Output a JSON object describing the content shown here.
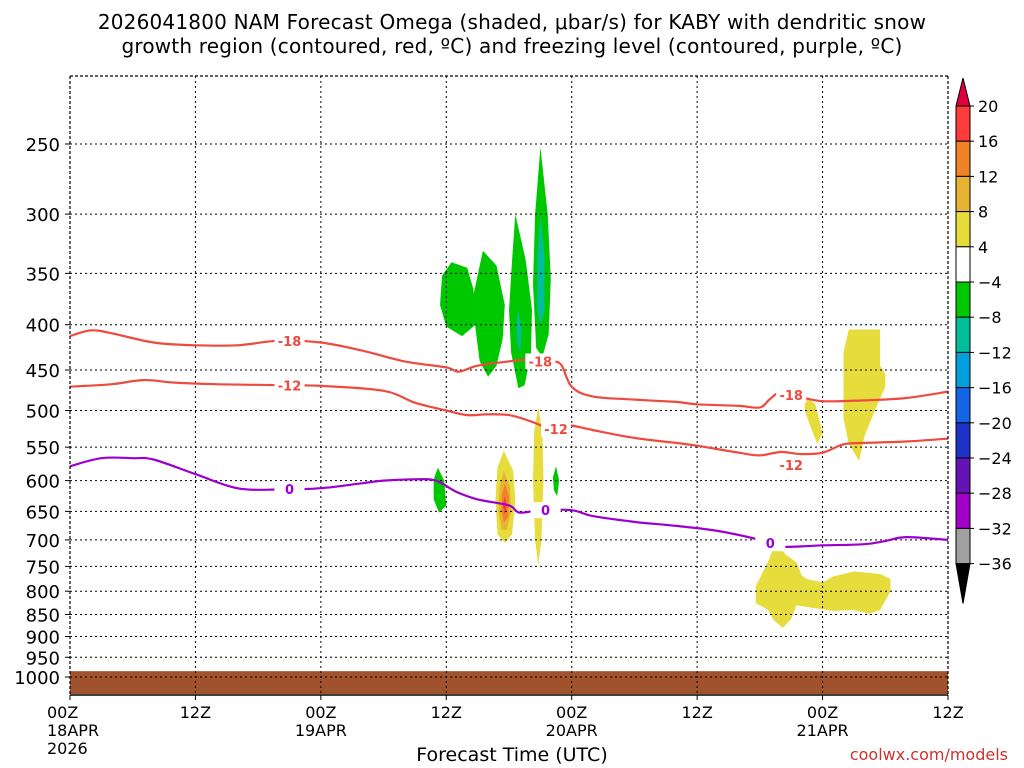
{
  "chart_data": {
    "type": "time-height-contour",
    "title_line1": "2026041800 NAM Forecast Omega (shaded, μbar/s) for KABY with dendritic snow",
    "title_line2": "growth region (contoured, red, ºC) and freezing level (contoured, purple, ºC)",
    "xlabel": "Forecast Time (UTC)",
    "credit": "coolwx.com/models",
    "x_hours_range": [
      0,
      84
    ],
    "x_ticks": [
      {
        "hour": 0,
        "label": "00Z",
        "date": "18APR",
        "year": "2026"
      },
      {
        "hour": 12,
        "label": "12Z",
        "date": "",
        "year": ""
      },
      {
        "hour": 24,
        "label": "00Z",
        "date": "19APR",
        "year": ""
      },
      {
        "hour": 36,
        "label": "12Z",
        "date": "",
        "year": ""
      },
      {
        "hour": 48,
        "label": "00Z",
        "date": "20APR",
        "year": ""
      },
      {
        "hour": 60,
        "label": "12Z",
        "date": "",
        "year": ""
      },
      {
        "hour": 72,
        "label": "00Z",
        "date": "21APR",
        "year": ""
      },
      {
        "hour": 84,
        "label": "12Z",
        "date": "",
        "year": ""
      }
    ],
    "y_ticks_hpa": [
      250,
      300,
      350,
      400,
      450,
      500,
      550,
      600,
      650,
      700,
      750,
      800,
      850,
      900,
      950,
      1000
    ],
    "y_scale": "log-pressure",
    "grid": true,
    "colorbar": {
      "labels": [
        "20",
        "16",
        "12",
        "8",
        "4",
        "−4",
        "−8",
        "−12",
        "−16",
        "−20",
        "−24",
        "−28",
        "−32",
        "−36"
      ],
      "colors": [
        "#e0003c",
        "#ff3c3c",
        "#f08228",
        "#e6b432",
        "#e6dc3c",
        "#ffffff",
        "#00c800",
        "#00be9b",
        "#00a0dc",
        "#1464e6",
        "#1e32c8",
        "#6414b4",
        "#a000c8",
        "#a0a0a0",
        "#000000"
      ]
    },
    "contours": [
      {
        "label": "-18",
        "color": "#ee4a3f",
        "points": [
          [
            0,
            412
          ],
          [
            2,
            406
          ],
          [
            4,
            409
          ],
          [
            8,
            419
          ],
          [
            12,
            422
          ],
          [
            16,
            422
          ],
          [
            20,
            417
          ],
          [
            24,
            419
          ],
          [
            28,
            428
          ],
          [
            32,
            440
          ],
          [
            36,
            447
          ],
          [
            37.2,
            452
          ],
          [
            39,
            445
          ],
          [
            42,
            440
          ],
          [
            44,
            438
          ],
          [
            46,
            440
          ],
          [
            47,
            444
          ],
          [
            48,
            470
          ],
          [
            50,
            482
          ],
          [
            54,
            486
          ],
          [
            58,
            489
          ],
          [
            60,
            492
          ],
          [
            64,
            494
          ],
          [
            66,
            496
          ],
          [
            67,
            485
          ],
          [
            68,
            477
          ],
          [
            70,
            483
          ],
          [
            72,
            488
          ],
          [
            76,
            487
          ],
          [
            80,
            484
          ],
          [
            84,
            476
          ]
        ]
      },
      {
        "label": "-12",
        "color": "#ee4a3f",
        "points": [
          [
            0,
            470
          ],
          [
            4,
            467
          ],
          [
            7,
            462
          ],
          [
            10,
            465
          ],
          [
            14,
            467
          ],
          [
            20,
            468
          ],
          [
            24,
            469
          ],
          [
            30,
            475
          ],
          [
            33,
            490
          ],
          [
            36,
            500
          ],
          [
            38,
            506
          ],
          [
            40,
            505
          ],
          [
            42,
            506
          ],
          [
            44,
            514
          ],
          [
            45.5,
            523
          ],
          [
            46,
            528
          ],
          [
            47,
            521
          ],
          [
            48,
            520
          ],
          [
            50,
            526
          ],
          [
            54,
            537
          ],
          [
            58,
            544
          ],
          [
            60,
            548
          ],
          [
            64,
            558
          ],
          [
            66,
            562
          ],
          [
            68,
            557
          ],
          [
            70,
            560
          ],
          [
            72,
            558
          ],
          [
            74,
            546
          ],
          [
            76,
            544
          ],
          [
            80,
            542
          ],
          [
            84,
            538
          ]
        ]
      },
      {
        "label": "0",
        "color": "#9b00d2",
        "points": [
          [
            0,
            578
          ],
          [
            3,
            566
          ],
          [
            6,
            566
          ],
          [
            8,
            568
          ],
          [
            12,
            590
          ],
          [
            16,
            612
          ],
          [
            20,
            614
          ],
          [
            24,
            612
          ],
          [
            28,
            604
          ],
          [
            30,
            600
          ],
          [
            33,
            598
          ],
          [
            35,
            600
          ],
          [
            37,
            618
          ],
          [
            39,
            630
          ],
          [
            42,
            640
          ],
          [
            43,
            652
          ],
          [
            45,
            648
          ],
          [
            48,
            648
          ],
          [
            50,
            658
          ],
          [
            54,
            668
          ],
          [
            58,
            675
          ],
          [
            62,
            684
          ],
          [
            66,
            700
          ],
          [
            68,
            712
          ],
          [
            70,
            712
          ],
          [
            72,
            710
          ],
          [
            76,
            708
          ],
          [
            78,
            702
          ],
          [
            80,
            695
          ],
          [
            84,
            700
          ]
        ]
      }
    ],
    "omega_regions": [
      {
        "value": "-8",
        "color": "#00c800",
        "kind": "poly",
        "points": [
          [
            36.5,
            340
          ],
          [
            38,
            345
          ],
          [
            38.6,
            365
          ],
          [
            38.8,
            400
          ],
          [
            37.5,
            412
          ],
          [
            36,
            402
          ],
          [
            35.4,
            380
          ],
          [
            35.6,
            352
          ]
        ]
      },
      {
        "value": "-8",
        "color": "#00c800",
        "kind": "poly",
        "points": [
          [
            39.5,
            330
          ],
          [
            40.8,
            343
          ],
          [
            41.6,
            380
          ],
          [
            41.4,
            415
          ],
          [
            40.8,
            445
          ],
          [
            40,
            458
          ],
          [
            39.2,
            440
          ],
          [
            38.8,
            405
          ],
          [
            38.6,
            370
          ]
        ]
      },
      {
        "value": "-8",
        "color": "#00c800",
        "kind": "poly",
        "points": [
          [
            42.6,
            300
          ],
          [
            43.6,
            338
          ],
          [
            44.2,
            385
          ],
          [
            44.1,
            430
          ],
          [
            43.5,
            468
          ],
          [
            42.9,
            472
          ],
          [
            42.2,
            430
          ],
          [
            42,
            385
          ],
          [
            42.3,
            338
          ]
        ]
      },
      {
        "value": "-8",
        "color": "#00c800",
        "kind": "poly",
        "points": [
          [
            45,
            252
          ],
          [
            45.7,
            300
          ],
          [
            46,
            355
          ],
          [
            45.8,
            410
          ],
          [
            45.2,
            435
          ],
          [
            44.6,
            425
          ],
          [
            44.3,
            360
          ],
          [
            44.5,
            300
          ]
        ]
      },
      {
        "value": "-12",
        "color": "#00be9b",
        "kind": "poly",
        "points": [
          [
            45,
            300
          ],
          [
            45.4,
            335
          ],
          [
            45.4,
            385
          ],
          [
            45,
            400
          ],
          [
            44.7,
            385
          ],
          [
            44.7,
            335
          ]
        ]
      },
      {
        "value": "-12",
        "color": "#00be9b",
        "kind": "poly",
        "points": [
          [
            42.9,
            385
          ],
          [
            43.2,
            405
          ],
          [
            43.1,
            430
          ],
          [
            42.8,
            420
          ],
          [
            42.7,
            400
          ]
        ]
      },
      {
        "value": "-8",
        "color": "#00c800",
        "kind": "poly",
        "points": [
          [
            35.2,
            580
          ],
          [
            35.8,
            600
          ],
          [
            36,
            640
          ],
          [
            35.3,
            652
          ],
          [
            34.8,
            630
          ],
          [
            34.8,
            598
          ]
        ]
      },
      {
        "value": "-8",
        "color": "#00c800",
        "kind": "poly",
        "points": [
          [
            46.5,
            578
          ],
          [
            46.8,
            600
          ],
          [
            46.6,
            625
          ],
          [
            46.3,
            615
          ],
          [
            46.2,
            595
          ]
        ]
      },
      {
        "value": "4",
        "color": "#e6dc3c",
        "kind": "poly",
        "points": [
          [
            41.5,
            555
          ],
          [
            42.4,
            585
          ],
          [
            42.6,
            630
          ],
          [
            42.3,
            690
          ],
          [
            41.6,
            705
          ],
          [
            40.9,
            690
          ],
          [
            40.7,
            630
          ],
          [
            40.9,
            580
          ]
        ]
      },
      {
        "value": "8",
        "color": "#e6b432",
        "kind": "poly",
        "points": [
          [
            41.5,
            585
          ],
          [
            42.1,
            610
          ],
          [
            42.2,
            650
          ],
          [
            41.8,
            682
          ],
          [
            41.3,
            682
          ],
          [
            41,
            650
          ],
          [
            41.1,
            610
          ]
        ]
      },
      {
        "value": "12",
        "color": "#f08228",
        "kind": "poly",
        "points": [
          [
            41.6,
            605
          ],
          [
            42,
            625
          ],
          [
            41.9,
            660
          ],
          [
            41.5,
            670
          ],
          [
            41.3,
            650
          ],
          [
            41.3,
            625
          ]
        ]
      },
      {
        "value": "16",
        "color": "#ff3c3c",
        "kind": "poly",
        "points": [
          [
            41.6,
            625
          ],
          [
            41.8,
            640
          ],
          [
            41.6,
            655
          ],
          [
            41.4,
            640
          ]
        ]
      },
      {
        "value": "4",
        "color": "#e6dc3c",
        "kind": "poly",
        "points": [
          [
            44.8,
            495
          ],
          [
            45.2,
            530
          ],
          [
            45.3,
            600
          ],
          [
            45.1,
            700
          ],
          [
            44.8,
            748
          ],
          [
            44.5,
            700
          ],
          [
            44.3,
            600
          ],
          [
            44.4,
            530
          ]
        ]
      },
      {
        "value": "4",
        "color": "#e6dc3c",
        "kind": "poly",
        "points": [
          [
            74.5,
            405
          ],
          [
            77.5,
            405
          ],
          [
            77.5,
            445
          ],
          [
            78,
            455
          ],
          [
            78,
            470
          ],
          [
            77,
            500
          ],
          [
            76,
            535
          ],
          [
            75.5,
            570
          ],
          [
            74.5,
            545
          ],
          [
            74,
            510
          ],
          [
            74,
            430
          ]
        ]
      },
      {
        "value": "4",
        "color": "#e6dc3c",
        "kind": "poly",
        "points": [
          [
            70.3,
            482
          ],
          [
            71.3,
            492
          ],
          [
            72,
            530
          ],
          [
            71.5,
            545
          ],
          [
            70.8,
            520
          ],
          [
            70.3,
            500
          ]
        ]
      },
      {
        "value": "4",
        "color": "#e6dc3c",
        "kind": "poly",
        "points": [
          [
            67.5,
            705
          ],
          [
            68.5,
            728
          ],
          [
            69.5,
            742
          ],
          [
            70,
            768
          ],
          [
            70.5,
            775
          ],
          [
            72,
            782
          ],
          [
            73,
            770
          ],
          [
            75,
            760
          ],
          [
            77.5,
            765
          ],
          [
            78.5,
            775
          ],
          [
            78.5,
            800
          ],
          [
            77.5,
            840
          ],
          [
            76.5,
            848
          ],
          [
            75,
            840
          ],
          [
            73,
            842
          ],
          [
            71,
            835
          ],
          [
            69.5,
            830
          ],
          [
            69,
            860
          ],
          [
            68.2,
            880
          ],
          [
            67.3,
            862
          ],
          [
            66.8,
            840
          ],
          [
            65.6,
            825
          ],
          [
            65.6,
            790
          ],
          [
            66.2,
            765
          ],
          [
            66.8,
            740
          ]
        ]
      }
    ]
  }
}
